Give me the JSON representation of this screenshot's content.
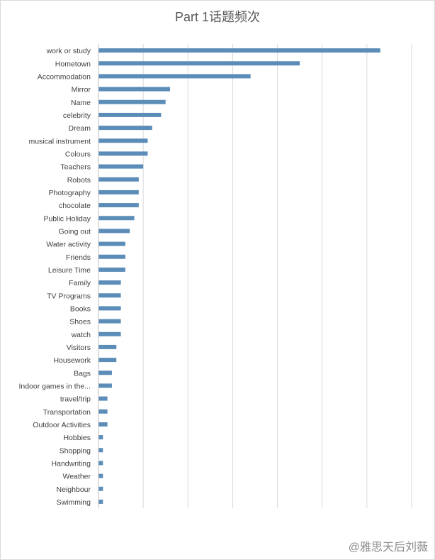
{
  "chart_data": {
    "type": "bar",
    "orientation": "horizontal",
    "title": "Part 1话题频次",
    "xlabel": "",
    "ylabel": "",
    "xlim": [
      0,
      70
    ],
    "grid": true,
    "bar_color": "#5B8DB8",
    "grid_color": "#d9d9d9",
    "categories": [
      "work or study",
      "Hometown",
      "Accommodation",
      "Mirror",
      "Name",
      "celebrity",
      "Dream",
      "musical instrument",
      "Colours",
      "Teachers",
      "Robots",
      "Photography",
      "chocolate",
      "Public Holiday",
      "Going out",
      "Water activity",
      "Friends",
      "Leisure Time",
      "Family",
      "TV Programs",
      "Books",
      "Shoes",
      "watch",
      "Visitors",
      "Housework",
      "Bags",
      "Indoor games in the...",
      "travel/trip",
      "Transportation",
      "Outdoor Activities",
      "Hobbies",
      "Shopping",
      "Handwriting",
      "Weather",
      "Neighbour",
      "Swimming"
    ],
    "values": [
      63,
      45,
      34,
      16,
      15,
      14,
      12,
      11,
      11,
      10,
      9,
      9,
      9,
      8,
      7,
      6,
      6,
      6,
      5,
      5,
      5,
      5,
      5,
      4,
      4,
      3,
      3,
      2,
      2,
      2,
      1,
      1,
      1,
      1,
      1,
      1
    ]
  },
  "watermark": "@雅思天后刘薇"
}
